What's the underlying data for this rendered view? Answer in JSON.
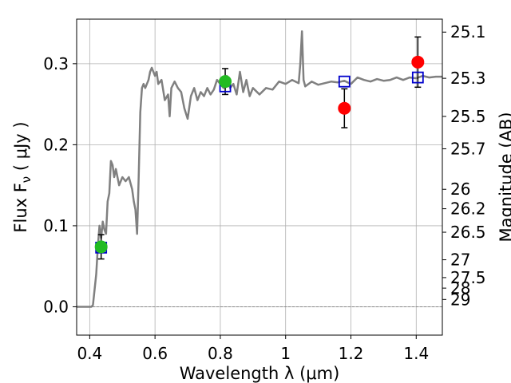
{
  "chart_data": {
    "type": "line",
    "xlabel": "Wavelength  λ (μm)",
    "ylabel": "Flux  F_ν  ( μJy )",
    "ylabel_right": "Magnitude (AB)",
    "xlim": [
      0.36,
      1.48
    ],
    "ylim": [
      -0.035,
      0.355
    ],
    "grid": true,
    "x_ticks": [
      0.4,
      0.6,
      0.8,
      1.0,
      1.2,
      1.4
    ],
    "x_tick_labels": [
      "0.4",
      "0.6",
      "0.8",
      "1",
      "1.2",
      "1.4"
    ],
    "y_ticks": [
      0.0,
      0.1,
      0.2,
      0.3
    ],
    "y_tick_labels": [
      "0.0",
      "0.1",
      "0.2",
      "0.3"
    ],
    "right_ticks": [
      {
        "label": "25.1",
        "flux": 0.339
      },
      {
        "label": "25.3",
        "flux": 0.282
      },
      {
        "label": "25.5",
        "flux": 0.235
      },
      {
        "label": "25.7",
        "flux": 0.195
      },
      {
        "label": "26",
        "flux": 0.145
      },
      {
        "label": "26.2",
        "flux": 0.121
      },
      {
        "label": "26.5",
        "flux": 0.092
      },
      {
        "label": "27",
        "flux": 0.058
      },
      {
        "label": "27.5",
        "flux": 0.036
      },
      {
        "label": "28",
        "flux": 0.023
      },
      {
        "label": "29",
        "flux": 0.009
      }
    ],
    "series": [
      {
        "kind": "template_spectrum",
        "color": "#808080",
        "x": [
          0.36,
          0.405,
          0.41,
          0.42,
          0.425,
          0.43,
          0.435,
          0.44,
          0.445,
          0.45,
          0.455,
          0.46,
          0.465,
          0.47,
          0.475,
          0.48,
          0.49,
          0.5,
          0.51,
          0.52,
          0.53,
          0.535,
          0.54,
          0.545,
          0.55,
          0.555,
          0.56,
          0.565,
          0.57,
          0.58,
          0.585,
          0.59,
          0.6,
          0.605,
          0.61,
          0.62,
          0.63,
          0.64,
          0.645,
          0.65,
          0.66,
          0.67,
          0.68,
          0.69,
          0.7,
          0.71,
          0.72,
          0.73,
          0.74,
          0.75,
          0.76,
          0.77,
          0.78,
          0.79,
          0.8,
          0.81,
          0.82,
          0.83,
          0.84,
          0.85,
          0.86,
          0.87,
          0.88,
          0.89,
          0.9,
          0.92,
          0.94,
          0.96,
          0.98,
          1.0,
          1.02,
          1.04,
          1.045,
          1.05,
          1.055,
          1.06,
          1.08,
          1.1,
          1.12,
          1.14,
          1.16,
          1.18,
          1.2,
          1.22,
          1.24,
          1.26,
          1.28,
          1.3,
          1.32,
          1.34,
          1.36,
          1.38,
          1.4,
          1.42,
          1.44,
          1.46,
          1.48
        ],
        "y": [
          0.0,
          0.0,
          0.002,
          0.04,
          0.075,
          0.1,
          0.085,
          0.105,
          0.095,
          0.09,
          0.13,
          0.14,
          0.18,
          0.175,
          0.16,
          0.17,
          0.15,
          0.16,
          0.155,
          0.16,
          0.145,
          0.13,
          0.12,
          0.09,
          0.16,
          0.24,
          0.27,
          0.275,
          0.27,
          0.28,
          0.29,
          0.295,
          0.285,
          0.29,
          0.275,
          0.28,
          0.255,
          0.262,
          0.235,
          0.27,
          0.278,
          0.27,
          0.265,
          0.245,
          0.232,
          0.26,
          0.27,
          0.255,
          0.265,
          0.26,
          0.27,
          0.262,
          0.268,
          0.28,
          0.275,
          0.27,
          0.285,
          0.27,
          0.275,
          0.262,
          0.29,
          0.265,
          0.28,
          0.26,
          0.27,
          0.262,
          0.27,
          0.268,
          0.278,
          0.275,
          0.28,
          0.276,
          0.3,
          0.34,
          0.28,
          0.272,
          0.278,
          0.274,
          0.276,
          0.278,
          0.277,
          0.279,
          0.275,
          0.283,
          0.28,
          0.278,
          0.281,
          0.279,
          0.28,
          0.283,
          0.28,
          0.283,
          0.282,
          0.285,
          0.283,
          0.284,
          0.284
        ]
      },
      {
        "kind": "model_boxes",
        "color": "#0000cc",
        "x": [
          0.435,
          0.815,
          1.18,
          1.405
        ],
        "y": [
          0.073,
          0.272,
          0.278,
          0.283
        ]
      },
      {
        "kind": "green_points",
        "color": "#22bb22",
        "x": [
          0.435,
          0.815
        ],
        "y": [
          0.074,
          0.278
        ],
        "yerr": [
          0.015,
          0.016
        ]
      },
      {
        "kind": "red_points",
        "color": "#ff0000",
        "x": [
          1.18,
          1.405
        ],
        "y": [
          0.245,
          0.302
        ],
        "yerr": [
          0.024,
          0.031
        ]
      }
    ]
  }
}
